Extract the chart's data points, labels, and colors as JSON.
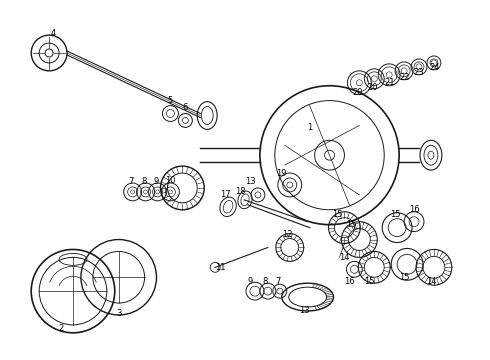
{
  "bg_color": "#ffffff",
  "lc": "#1a1a1a",
  "fig_width": 4.9,
  "fig_height": 3.6,
  "dpi": 100,
  "font_size": 6.0
}
